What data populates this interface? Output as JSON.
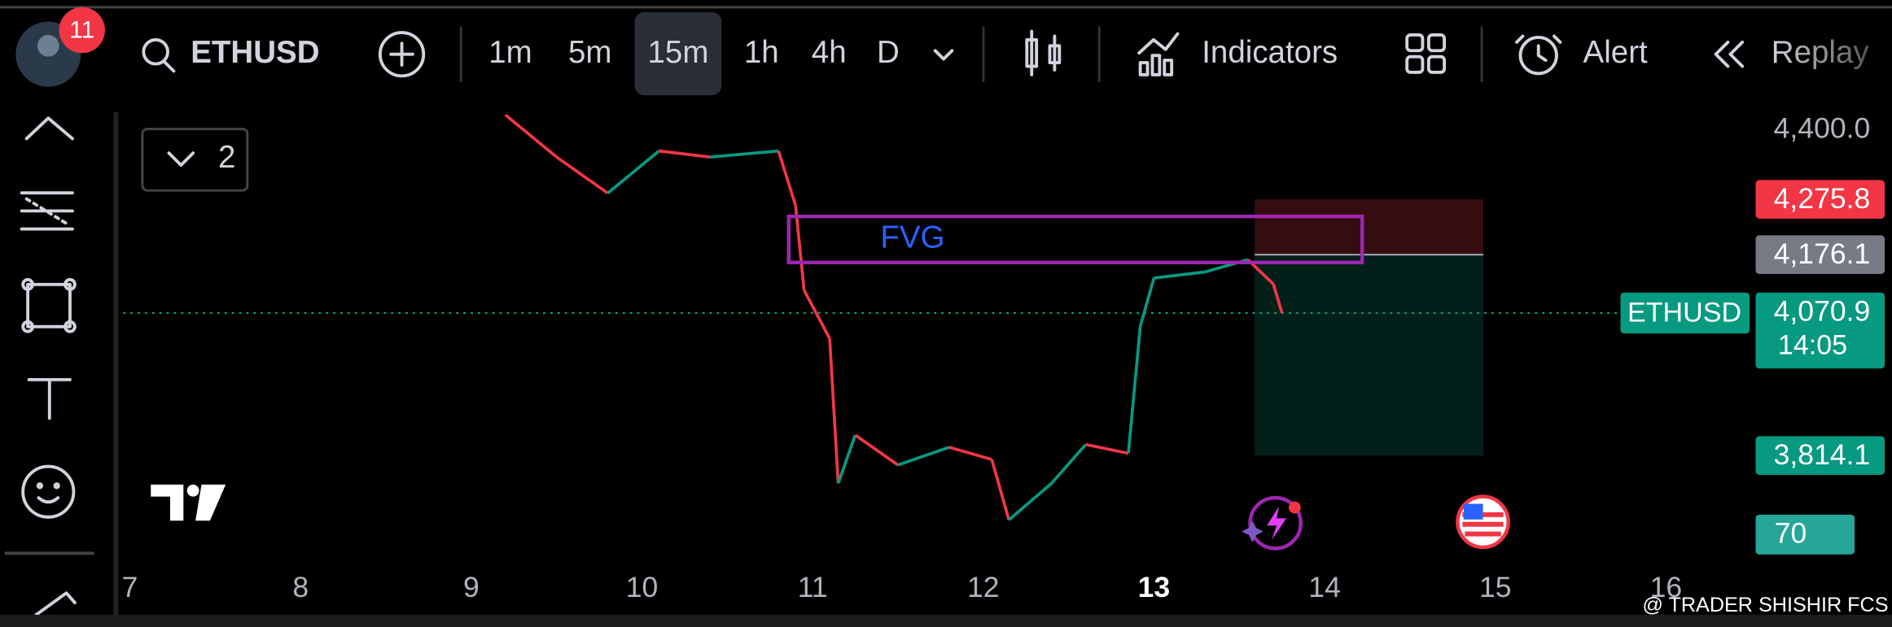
{
  "toolbar": {
    "badge": "11",
    "symbol": "ETHUSD",
    "intervals": [
      "1m",
      "5m",
      "15m",
      "1h",
      "4h",
      "D"
    ],
    "selected": 2,
    "indicators": "Indicators",
    "alert": "Alert",
    "replay": "Replay"
  },
  "legend_toggle": "2",
  "watermark": "@ TRADER SHISHIR FCS",
  "chart_data": {
    "type": "line",
    "x": [
      9.2,
      9.5,
      9.8,
      10.1,
      10.4,
      10.8,
      10.9,
      10.95,
      11.1,
      11.15,
      11.25,
      11.5,
      11.8,
      12.05,
      12.15,
      12.4,
      12.6,
      12.85,
      12.92,
      13.0,
      13.3,
      13.55,
      13.7,
      13.75
    ],
    "values": [
      4428,
      4352,
      4287,
      4363,
      4352,
      4363,
      4265,
      4112,
      4025,
      3764,
      3851,
      3797,
      3829,
      3807,
      3698,
      3764,
      3834,
      3818,
      4047,
      4134,
      4145,
      4167,
      4123,
      4071
    ],
    "up_color": "#089981",
    "down_color": "#f23645",
    "xlim": [
      6.96,
      16.49
    ],
    "ylim": [
      3638,
      4433
    ],
    "xticks": [
      7,
      8,
      9,
      10,
      11,
      12,
      13,
      14,
      15,
      16
    ],
    "bold_xtick": 13,
    "yticks": [
      {
        "value": 4400,
        "label": "4,400.0"
      }
    ],
    "fvg": {
      "label": "FVG",
      "x": [
        10.86,
        14.22
      ],
      "y": [
        4162,
        4245
      ],
      "color": "#9c27b0"
    },
    "position_x": [
      13.59,
      14.93
    ],
    "price_badges": [
      {
        "value": 4275.8,
        "label": "4,275.8",
        "color": "#f23645"
      },
      {
        "value": 4176.1,
        "label": "4,176.1",
        "color": "#787b86"
      },
      {
        "value": 3814.1,
        "label": "3,814.1",
        "color": "#089981"
      }
    ],
    "last_price": {
      "value": 4070.9,
      "label": "4,070.9",
      "symbol": "ETHUSD",
      "countdown": "14:05",
      "color": "#089981"
    },
    "volume_badge": 70
  }
}
